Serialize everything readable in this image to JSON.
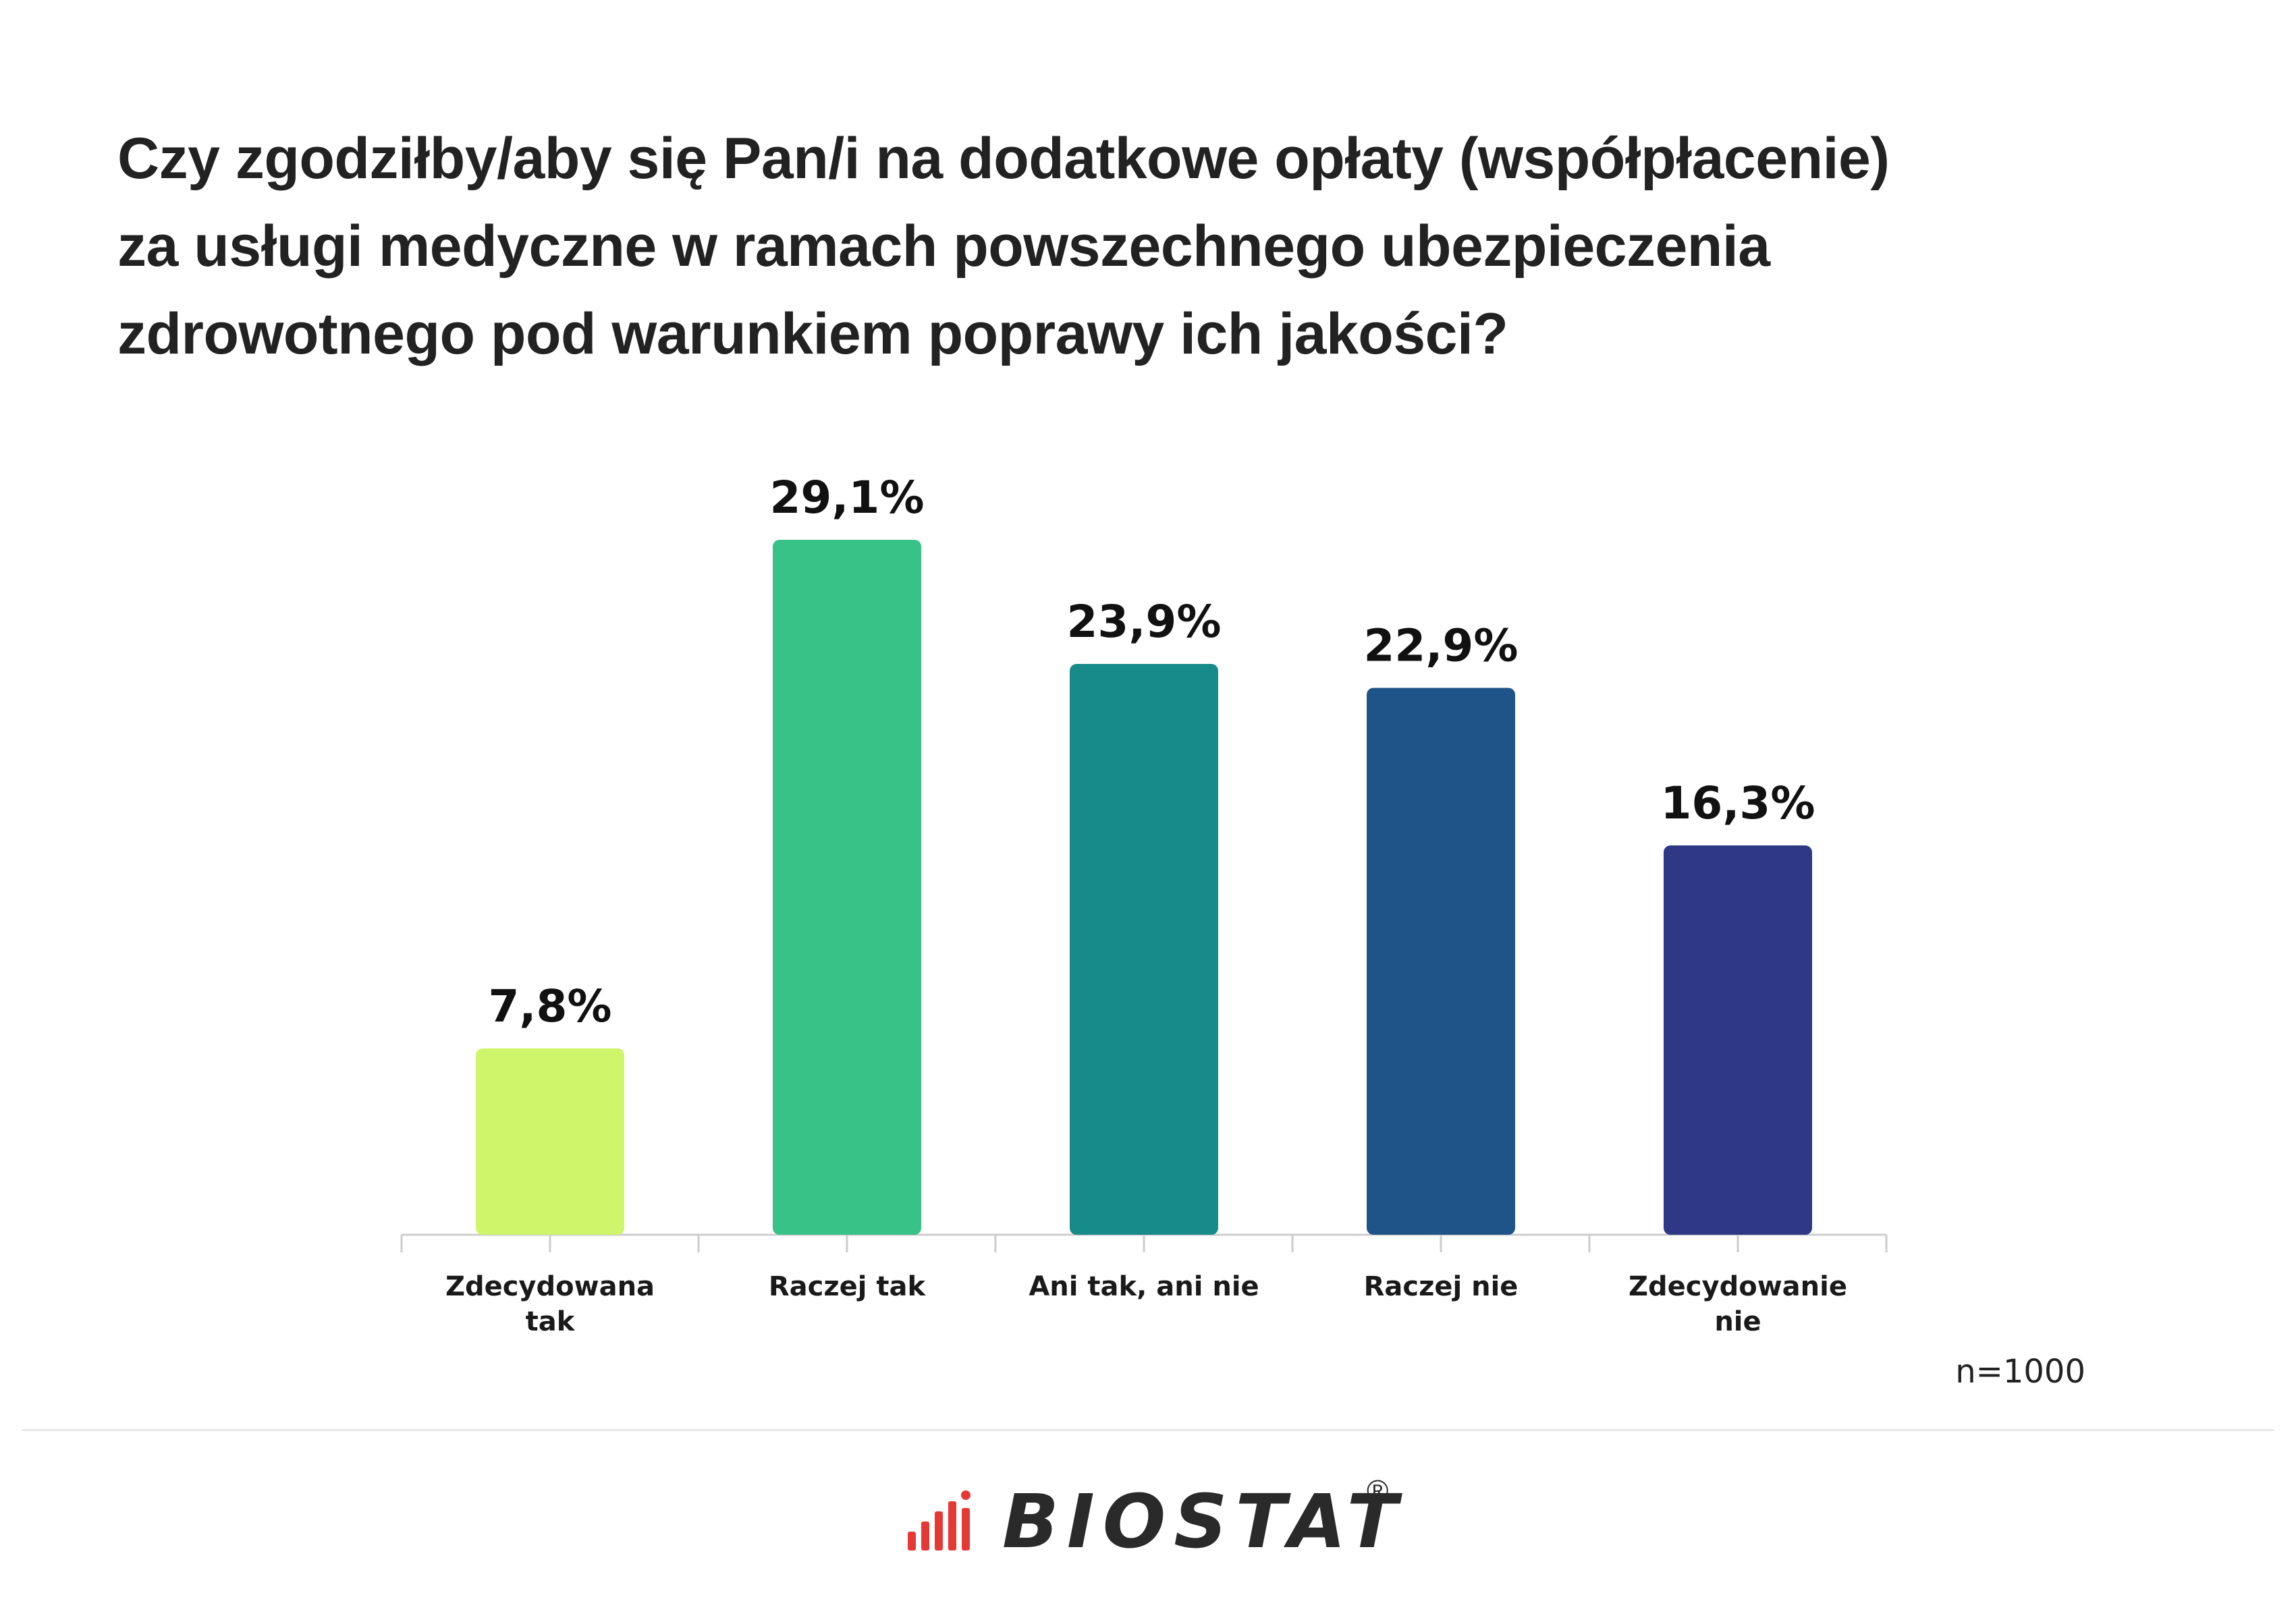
{
  "title_lines": [
    "Czy zgodziłby/aby się Pan/i na dodatkowe opłaty (współpłacenie)",
    "za usługi medyczne w ramach powszechnego ubezpieczenia",
    "zdrowotnego pod warunkiem poprawy ich jakości?"
  ],
  "note": "n=1000",
  "logo": {
    "text": "BIOSTAT",
    "reg": "®",
    "icon": "bar-signal-icon",
    "icon_color": "#e53935"
  },
  "chart_data": {
    "type": "bar",
    "title": "Czy zgodziłby/aby się Pan/i na dodatkowe opłaty (współpłacenie) za usługi medyczne w ramach powszechnego ubezpieczenia zdrowotnego pod warunkiem poprawy ich jakości?",
    "categories": [
      "Zdecydowana tak",
      "Raczej tak",
      "Ani tak, ani nie",
      "Raczej nie",
      "Zdecydowanie nie"
    ],
    "category_lines": [
      [
        "Zdecydowana",
        "tak"
      ],
      [
        "Raczej tak"
      ],
      [
        "Ani tak, ani nie"
      ],
      [
        "Raczej nie"
      ],
      [
        "Zdecydowanie",
        "nie"
      ]
    ],
    "values": [
      7.8,
      29.1,
      23.9,
      22.9,
      16.3
    ],
    "value_labels": [
      "7,8%",
      "29,1%",
      "23,9%",
      "22,9%",
      "16,3%"
    ],
    "colors": [
      "#cff56b",
      "#38c287",
      "#178a8a",
      "#1f5488",
      "#2e3885"
    ],
    "unit": "%",
    "ylim": [
      0,
      29.1
    ],
    "grid": false,
    "legend": "none",
    "xlabel": "",
    "ylabel": ""
  }
}
